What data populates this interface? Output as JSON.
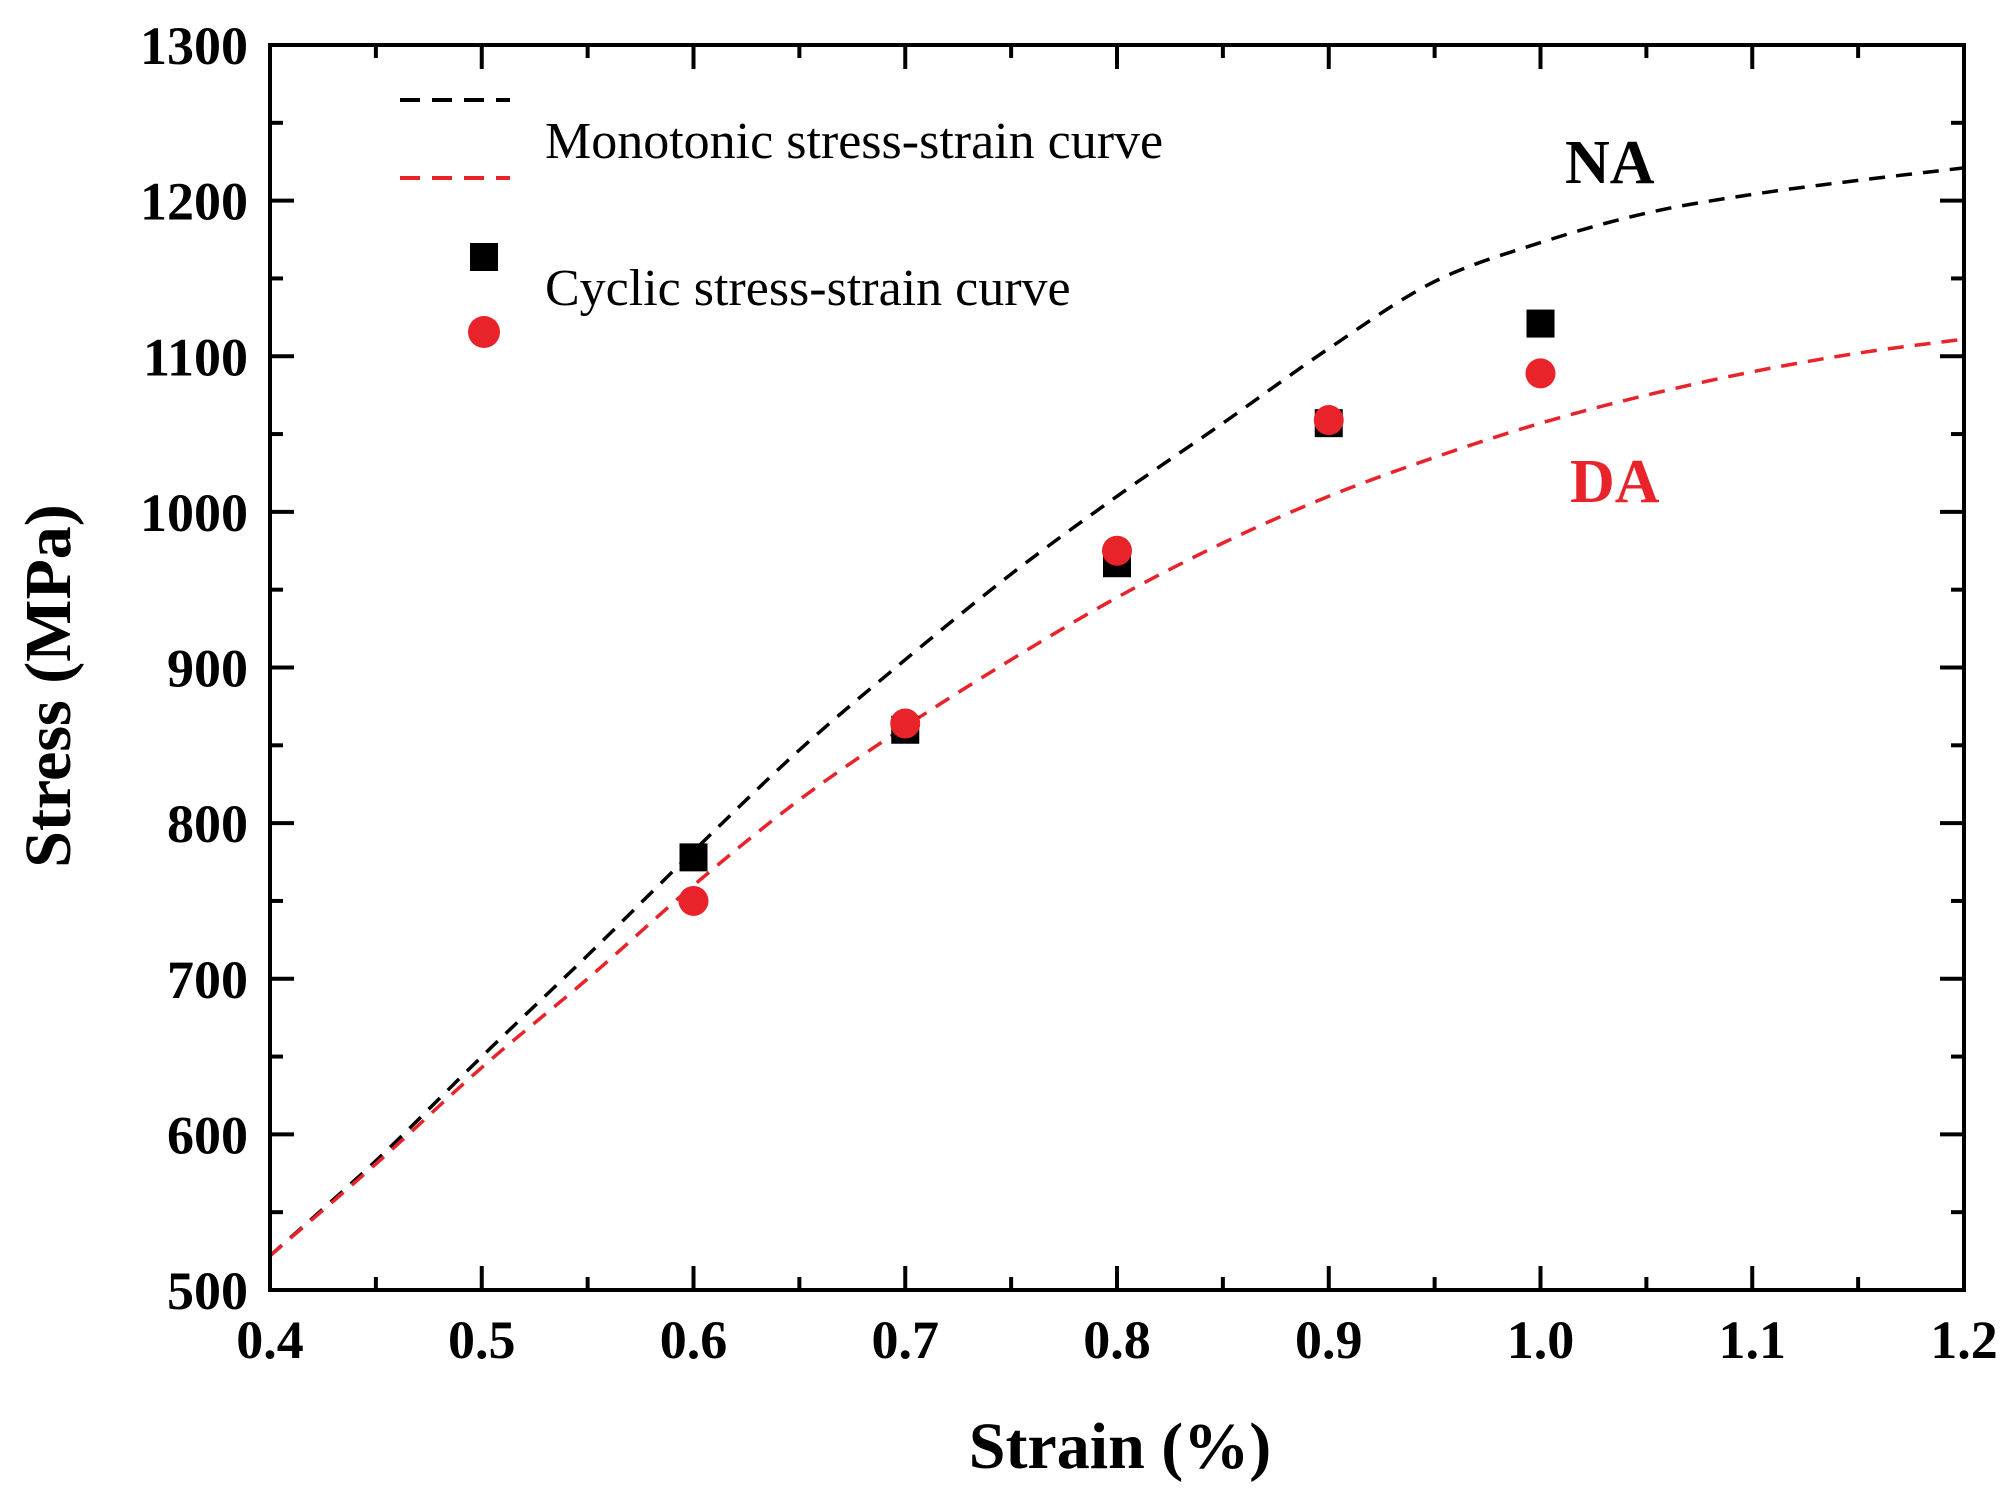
{
  "chart_data": {
    "type": "line",
    "title": "",
    "xlabel": "Strain (%)",
    "ylabel": "Stress (MPa)",
    "xlim": [
      0.4,
      1.2
    ],
    "ylim": [
      500,
      1300
    ],
    "xticks": [
      0.4,
      0.5,
      0.6,
      0.7,
      0.8,
      0.9,
      1.0,
      1.1,
      1.2
    ],
    "xtick_labels": [
      "0.4",
      "0.5",
      "0.6",
      "0.7",
      "0.8",
      "0.9",
      "1.0",
      "1.1",
      "1.2"
    ],
    "yticks": [
      500,
      600,
      700,
      800,
      900,
      1000,
      1100,
      1200,
      1300
    ],
    "ytick_labels": [
      "500",
      "600",
      "700",
      "800",
      "900",
      "1000",
      "1100",
      "1200",
      "1300"
    ],
    "grid": false,
    "legend_position": "top-left",
    "legend": {
      "monotonic_label": "Monotonic stress-strain curve",
      "cyclic_label": "Cyclic stress-strain curve"
    },
    "annotations": {
      "na": "NA",
      "da": "DA"
    },
    "colors": {
      "na": "#000000",
      "da": "#e8232a"
    },
    "series": [
      {
        "name": "NA monotonic",
        "style": "dashed",
        "color": "#000000",
        "x": [
          0.4,
          0.45,
          0.5,
          0.55,
          0.6,
          0.65,
          0.7,
          0.75,
          0.8,
          0.85,
          0.9,
          0.95,
          1.0,
          1.05,
          1.1,
          1.15,
          1.2
        ],
        "y": [
          522,
          583,
          650,
          715,
          782,
          847,
          905,
          960,
          1010,
          1057,
          1105,
          1148,
          1173,
          1192,
          1204,
          1213,
          1221
        ]
      },
      {
        "name": "DA monotonic",
        "style": "dashed",
        "color": "#e8232a",
        "x": [
          0.4,
          0.45,
          0.5,
          0.55,
          0.6,
          0.65,
          0.7,
          0.75,
          0.8,
          0.85,
          0.9,
          0.95,
          1.0,
          1.05,
          1.1,
          1.15,
          1.2
        ],
        "y": [
          522,
          581,
          643,
          700,
          760,
          815,
          862,
          905,
          945,
          980,
          1010,
          1035,
          1057,
          1075,
          1090,
          1102,
          1111
        ]
      },
      {
        "name": "NA cyclic",
        "style": "square",
        "color": "#000000",
        "x": [
          0.6,
          0.7,
          0.8,
          0.9,
          1.0
        ],
        "y": [
          778,
          860,
          967,
          1057,
          1121
        ]
      },
      {
        "name": "DA cyclic",
        "style": "circle",
        "color": "#e8232a",
        "x": [
          0.6,
          0.7,
          0.8,
          0.9,
          1.0
        ],
        "y": [
          750,
          864,
          975,
          1059,
          1089
        ]
      }
    ]
  }
}
